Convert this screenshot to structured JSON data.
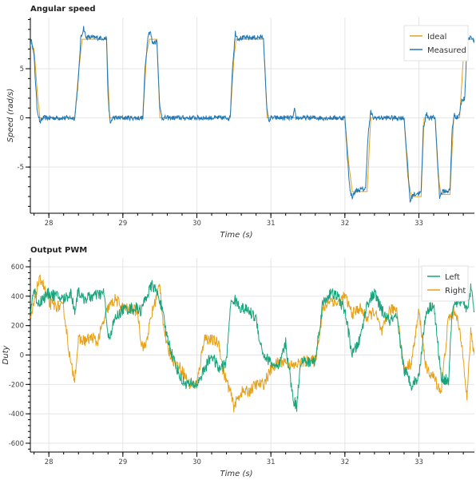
{
  "chart_data": [
    {
      "type": "line",
      "title": "Angular speed",
      "xlabel": "Time (s)",
      "ylabel": "Speed (rad/s)",
      "xlim": [
        27.75,
        33.75
      ],
      "ylim": [
        -9.7,
        10.2
      ],
      "xticks": [
        28,
        29,
        30,
        31,
        32,
        33
      ],
      "yticks": [
        -5,
        0,
        5
      ],
      "grid": true,
      "legend": "top-right",
      "series": [
        {
          "name": "Ideal",
          "color": "#e6a117",
          "points": [
            [
              27.75,
              7.8
            ],
            [
              27.8,
              7.0
            ],
            [
              27.85,
              2.0
            ],
            [
              27.88,
              0
            ],
            [
              28.35,
              0
            ],
            [
              28.4,
              4.5
            ],
            [
              28.45,
              8.0
            ],
            [
              28.78,
              8.0
            ],
            [
              28.82,
              0
            ],
            [
              29.27,
              0
            ],
            [
              29.32,
              6.5
            ],
            [
              29.36,
              8.0
            ],
            [
              29.46,
              8.0
            ],
            [
              29.5,
              0
            ],
            [
              30.45,
              0
            ],
            [
              30.5,
              6.0
            ],
            [
              30.53,
              8.0
            ],
            [
              30.9,
              8.0
            ],
            [
              30.95,
              0
            ],
            [
              32.0,
              0
            ],
            [
              32.05,
              -4.5
            ],
            [
              32.1,
              -7.5
            ],
            [
              32.3,
              -7.5
            ],
            [
              32.35,
              0
            ],
            [
              32.8,
              0
            ],
            [
              32.85,
              -6.0
            ],
            [
              32.9,
              -8.0
            ],
            [
              33.03,
              -8.0
            ],
            [
              33.07,
              0
            ],
            [
              33.22,
              0
            ],
            [
              33.26,
              -6.0
            ],
            [
              33.3,
              -7.8
            ],
            [
              33.42,
              -7.8
            ],
            [
              33.47,
              0
            ],
            [
              33.55,
              0
            ],
            [
              33.6,
              6.0
            ],
            [
              33.65,
              8.0
            ],
            [
              33.75,
              8.0
            ]
          ]
        },
        {
          "name": "Measured",
          "color": "#1f77b4",
          "noise": 0.25,
          "points": [
            [
              27.75,
              7.5
            ],
            [
              27.77,
              7.9
            ],
            [
              27.8,
              6.2
            ],
            [
              27.84,
              1.0
            ],
            [
              27.88,
              -0.5
            ],
            [
              27.92,
              0
            ],
            [
              28.35,
              0
            ],
            [
              28.4,
              4.0
            ],
            [
              28.43,
              8.0
            ],
            [
              28.47,
              9.2
            ],
            [
              28.5,
              8.2
            ],
            [
              28.78,
              8.1
            ],
            [
              28.8,
              2.0
            ],
            [
              28.83,
              -0.6
            ],
            [
              28.86,
              0
            ],
            [
              29.27,
              0
            ],
            [
              29.3,
              5.0
            ],
            [
              29.34,
              8.5
            ],
            [
              29.37,
              8.8
            ],
            [
              29.4,
              7.6
            ],
            [
              29.46,
              7.8
            ],
            [
              29.5,
              1.0
            ],
            [
              29.53,
              0
            ],
            [
              30.45,
              0
            ],
            [
              30.48,
              5.0
            ],
            [
              30.52,
              8.7
            ],
            [
              30.55,
              8.1
            ],
            [
              30.9,
              8.2
            ],
            [
              30.94,
              1.5
            ],
            [
              30.97,
              -0.3
            ],
            [
              31.0,
              0
            ],
            [
              31.3,
              0
            ],
            [
              31.32,
              0.8
            ],
            [
              31.34,
              0
            ],
            [
              32.0,
              0
            ],
            [
              32.03,
              -3.5
            ],
            [
              32.07,
              -7.5
            ],
            [
              32.1,
              -8.0
            ],
            [
              32.15,
              -7.4
            ],
            [
              32.28,
              -7.2
            ],
            [
              32.31,
              -2.0
            ],
            [
              32.35,
              0.6
            ],
            [
              32.38,
              0
            ],
            [
              32.8,
              0
            ],
            [
              32.84,
              -4.0
            ],
            [
              32.88,
              -8.5
            ],
            [
              32.92,
              -7.8
            ],
            [
              33.03,
              -7.6
            ],
            [
              33.06,
              -1.0
            ],
            [
              33.1,
              0.4
            ],
            [
              33.14,
              0
            ],
            [
              33.22,
              0
            ],
            [
              33.25,
              -4.0
            ],
            [
              33.28,
              -8.0
            ],
            [
              33.32,
              -7.5
            ],
            [
              33.42,
              -7.4
            ],
            [
              33.45,
              -1.0
            ],
            [
              33.48,
              0.3
            ],
            [
              33.52,
              0
            ],
            [
              33.55,
              0.5
            ],
            [
              33.58,
              1.8
            ],
            [
              33.62,
              2.0
            ],
            [
              33.65,
              8.0
            ],
            [
              33.7,
              8.3
            ],
            [
              33.75,
              7.6
            ]
          ]
        }
      ]
    },
    {
      "type": "line",
      "title": "Output PWM",
      "xlabel": "Time (s)",
      "ylabel": "Duty",
      "xlim": [
        27.75,
        33.75
      ],
      "ylim": [
        -660,
        660
      ],
      "xticks": [
        28,
        29,
        30,
        31,
        32,
        33
      ],
      "yticks": [
        -600,
        -400,
        -200,
        0,
        200,
        400,
        600
      ],
      "grid": true,
      "legend": "top-right",
      "series": [
        {
          "name": "Left",
          "color": "#17a37b",
          "noise": 40,
          "points": [
            [
              27.75,
              300
            ],
            [
              27.8,
              450
            ],
            [
              27.85,
              350
            ],
            [
              28.0,
              420
            ],
            [
              28.2,
              380
            ],
            [
              28.3,
              420
            ],
            [
              28.35,
              300
            ],
            [
              28.4,
              450
            ],
            [
              28.45,
              380
            ],
            [
              28.6,
              400
            ],
            [
              28.75,
              420
            ],
            [
              28.8,
              100
            ],
            [
              28.9,
              250
            ],
            [
              29.0,
              310
            ],
            [
              29.2,
              320
            ],
            [
              29.25,
              300
            ],
            [
              29.3,
              380
            ],
            [
              29.4,
              480
            ],
            [
              29.5,
              380
            ],
            [
              29.6,
              120
            ],
            [
              29.7,
              -50
            ],
            [
              29.8,
              -180
            ],
            [
              29.9,
              -200
            ],
            [
              30.0,
              -200
            ],
            [
              30.1,
              -100
            ],
            [
              30.2,
              0
            ],
            [
              30.3,
              -100
            ],
            [
              30.4,
              -50
            ],
            [
              30.45,
              330
            ],
            [
              30.5,
              380
            ],
            [
              30.6,
              320
            ],
            [
              30.7,
              300
            ],
            [
              30.8,
              250
            ],
            [
              30.85,
              100
            ],
            [
              30.9,
              0
            ],
            [
              31.0,
              -50
            ],
            [
              31.1,
              -100
            ],
            [
              31.2,
              80
            ],
            [
              31.3,
              -300
            ],
            [
              31.35,
              -350
            ],
            [
              31.4,
              -40
            ],
            [
              31.5,
              -50
            ],
            [
              31.6,
              -40
            ],
            [
              31.7,
              350
            ],
            [
              31.8,
              420
            ],
            [
              31.9,
              400
            ],
            [
              32.0,
              300
            ],
            [
              32.1,
              0
            ],
            [
              32.2,
              100
            ],
            [
              32.3,
              350
            ],
            [
              32.4,
              420
            ],
            [
              32.5,
              300
            ],
            [
              32.6,
              230
            ],
            [
              32.7,
              250
            ],
            [
              32.8,
              -100
            ],
            [
              32.9,
              -200
            ],
            [
              33.0,
              -150
            ],
            [
              33.05,
              100
            ],
            [
              33.1,
              300
            ],
            [
              33.2,
              350
            ],
            [
              33.3,
              -150
            ],
            [
              33.4,
              -180
            ],
            [
              33.45,
              300
            ],
            [
              33.5,
              350
            ],
            [
              33.6,
              380
            ],
            [
              33.65,
              300
            ],
            [
              33.7,
              450
            ],
            [
              33.75,
              300
            ]
          ]
        },
        {
          "name": "Right",
          "color": "#e6a117",
          "noise": 40,
          "points": [
            [
              27.75,
              230
            ],
            [
              27.8,
              350
            ],
            [
              27.85,
              480
            ],
            [
              27.9,
              520
            ],
            [
              28.0,
              350
            ],
            [
              28.2,
              320
            ],
            [
              28.25,
              120
            ],
            [
              28.3,
              -80
            ],
            [
              28.35,
              -150
            ],
            [
              28.4,
              100
            ],
            [
              28.5,
              100
            ],
            [
              28.6,
              120
            ],
            [
              28.65,
              80
            ],
            [
              28.8,
              320
            ],
            [
              28.9,
              380
            ],
            [
              29.0,
              320
            ],
            [
              29.2,
              300
            ],
            [
              29.25,
              80
            ],
            [
              29.3,
              50
            ],
            [
              29.4,
              300
            ],
            [
              29.5,
              480
            ],
            [
              29.55,
              200
            ],
            [
              29.6,
              50
            ],
            [
              29.7,
              -50
            ],
            [
              29.8,
              -100
            ],
            [
              29.9,
              -200
            ],
            [
              30.0,
              -200
            ],
            [
              30.1,
              120
            ],
            [
              30.2,
              100
            ],
            [
              30.3,
              80
            ],
            [
              30.35,
              -100
            ],
            [
              30.45,
              -250
            ],
            [
              30.5,
              -350
            ],
            [
              30.55,
              -300
            ],
            [
              30.6,
              -250
            ],
            [
              30.7,
              -250
            ],
            [
              30.8,
              -200
            ],
            [
              30.9,
              -200
            ],
            [
              31.0,
              -100
            ],
            [
              31.1,
              -50
            ],
            [
              31.2,
              -40
            ],
            [
              31.3,
              -80
            ],
            [
              31.4,
              -50
            ],
            [
              31.5,
              -40
            ],
            [
              31.6,
              -40
            ],
            [
              31.7,
              300
            ],
            [
              31.8,
              380
            ],
            [
              31.9,
              350
            ],
            [
              32.0,
              400
            ],
            [
              32.1,
              280
            ],
            [
              32.2,
              320
            ],
            [
              32.3,
              250
            ],
            [
              32.4,
              300
            ],
            [
              32.5,
              150
            ],
            [
              32.6,
              300
            ],
            [
              32.7,
              320
            ],
            [
              32.8,
              -100
            ],
            [
              32.9,
              -50
            ],
            [
              33.0,
              300
            ],
            [
              33.1,
              -100
            ],
            [
              33.2,
              -150
            ],
            [
              33.3,
              -250
            ],
            [
              33.4,
              250
            ],
            [
              33.5,
              300
            ],
            [
              33.6,
              0
            ],
            [
              33.65,
              -300
            ],
            [
              33.7,
              150
            ],
            [
              33.75,
              0
            ]
          ]
        }
      ]
    }
  ]
}
